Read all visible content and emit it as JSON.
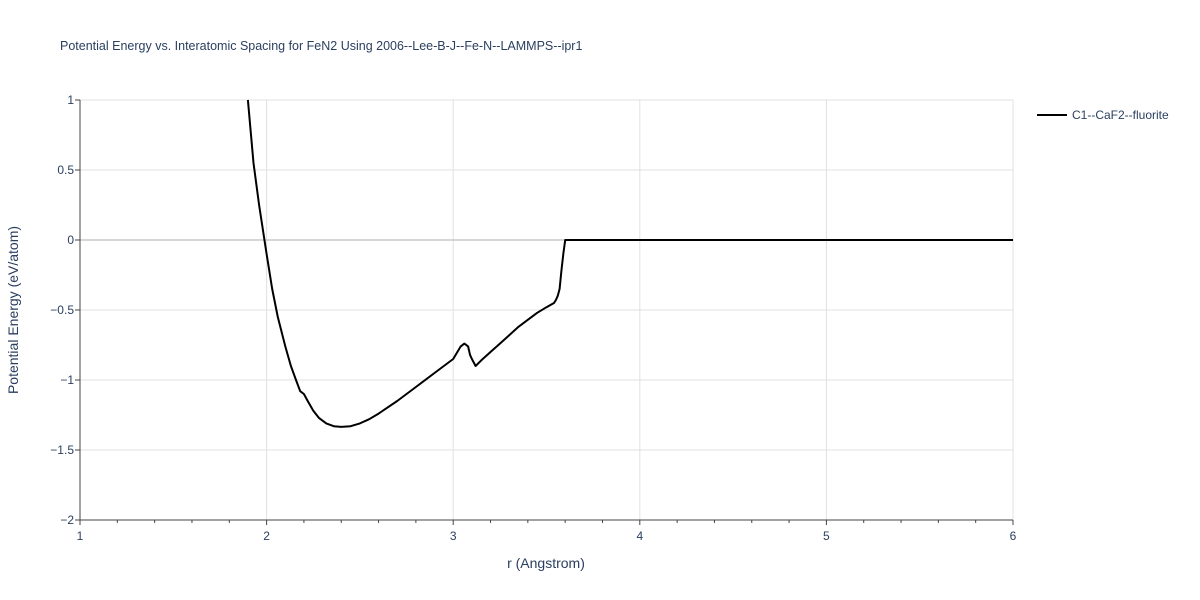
{
  "chart_data": {
    "type": "line",
    "title": "Potential Energy vs. Interatomic Spacing for FeN2 Using 2006--Lee-B-J--Fe-N--LAMMPS--ipr1",
    "xlabel": "r (Angstrom)",
    "ylabel": "Potential Energy (eV/atom)",
    "xlim": [
      1,
      6
    ],
    "ylim": [
      -2,
      1
    ],
    "x_ticks": [
      1,
      2,
      3,
      4,
      5,
      6
    ],
    "x_tick_labels": [
      "1",
      "2",
      "3",
      "4",
      "5",
      "6"
    ],
    "y_ticks": [
      -2,
      -1.5,
      -1,
      -0.5,
      0,
      0.5,
      1
    ],
    "y_tick_labels": [
      "−2",
      "−1.5",
      "−1",
      "−0.5",
      "0",
      "0.5",
      "1"
    ],
    "grid": true,
    "legend_position": "top-right",
    "series": [
      {
        "name": "C1--CaF2--fluorite",
        "color": "#000000",
        "x": [
          1.9,
          1.93,
          1.96,
          2.0,
          2.03,
          2.06,
          2.1,
          2.13,
          2.16,
          2.18,
          2.2,
          2.22,
          2.25,
          2.28,
          2.32,
          2.36,
          2.4,
          2.45,
          2.5,
          2.55,
          2.6,
          2.7,
          2.8,
          2.9,
          3.0,
          3.04,
          3.06,
          3.08,
          3.09,
          3.1,
          3.12,
          3.15,
          3.2,
          3.25,
          3.3,
          3.35,
          3.4,
          3.45,
          3.5,
          3.52,
          3.54,
          3.55,
          3.56,
          3.57,
          3.58,
          3.59,
          3.6,
          3.7,
          4.0,
          4.5,
          5.0,
          5.5,
          6.0
        ],
        "y": [
          1.0,
          0.55,
          0.25,
          -0.1,
          -0.35,
          -0.55,
          -0.76,
          -0.9,
          -1.01,
          -1.08,
          -1.1,
          -1.15,
          -1.22,
          -1.27,
          -1.31,
          -1.33,
          -1.335,
          -1.33,
          -1.31,
          -1.28,
          -1.24,
          -1.15,
          -1.05,
          -0.95,
          -0.85,
          -0.76,
          -0.74,
          -0.76,
          -0.82,
          -0.85,
          -0.9,
          -0.86,
          -0.8,
          -0.74,
          -0.68,
          -0.62,
          -0.57,
          -0.52,
          -0.48,
          -0.465,
          -0.45,
          -0.43,
          -0.4,
          -0.35,
          -0.22,
          -0.1,
          0.0,
          0.0,
          0.0,
          0.0,
          0.0,
          0.0,
          0.0
        ]
      }
    ]
  }
}
